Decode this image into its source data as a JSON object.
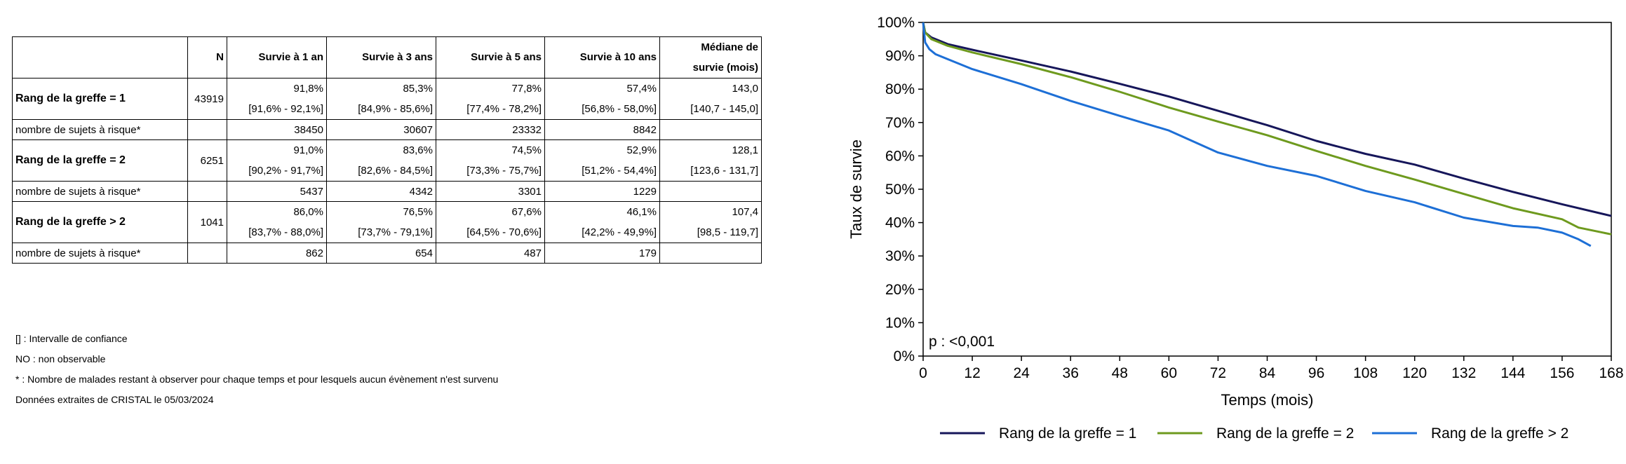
{
  "table": {
    "headers": {
      "group": "",
      "n": "N",
      "y1": "Survie à 1 an",
      "y3": "Survie à 3 ans",
      "y5": "Survie à 5 ans",
      "y10": "Survie à 10 ans",
      "median_line1": "Médiane de",
      "median_line2": "survie (mois)"
    },
    "groups": [
      {
        "label": "Rang de la greffe = 1",
        "n": "43919",
        "y1": {
          "value": "91,8%",
          "ci": "[91,6% - 92,1%]"
        },
        "y3": {
          "value": "85,3%",
          "ci": "[84,9% - 85,6%]"
        },
        "y5": {
          "value": "77,8%",
          "ci": "[77,4% - 78,2%]"
        },
        "y10": {
          "value": "57,4%",
          "ci": "[56,8% - 58,0%]"
        },
        "median": {
          "value": "143,0",
          "ci": "[140,7 - 145,0]"
        },
        "risk_label": "nombre de sujets à risque*",
        "risk": {
          "y1": "38450",
          "y3": "30607",
          "y5": "23332",
          "y10": "8842"
        }
      },
      {
        "label": "Rang de la greffe = 2",
        "n": "6251",
        "y1": {
          "value": "91,0%",
          "ci": "[90,2% - 91,7%]"
        },
        "y3": {
          "value": "83,6%",
          "ci": "[82,6% - 84,5%]"
        },
        "y5": {
          "value": "74,5%",
          "ci": "[73,3% - 75,7%]"
        },
        "y10": {
          "value": "52,9%",
          "ci": "[51,2% - 54,4%]"
        },
        "median": {
          "value": "128,1",
          "ci": "[123,6 - 131,7]"
        },
        "risk_label": "nombre de sujets à risque*",
        "risk": {
          "y1": "5437",
          "y3": "4342",
          "y5": "3301",
          "y10": "1229"
        }
      },
      {
        "label": "Rang de la greffe > 2",
        "n": "1041",
        "y1": {
          "value": "86,0%",
          "ci": "[83,7% - 88,0%]"
        },
        "y3": {
          "value": "76,5%",
          "ci": "[73,7% - 79,1%]"
        },
        "y5": {
          "value": "67,6%",
          "ci": "[64,5% - 70,6%]"
        },
        "y10": {
          "value": "46,1%",
          "ci": "[42,2% - 49,9%]"
        },
        "median": {
          "value": "107,4",
          "ci": "[98,5 - 119,7]"
        },
        "risk_label": "nombre de sujets à risque*",
        "risk": {
          "y1": "862",
          "y3": "654",
          "y5": "487",
          "y10": "179"
        }
      }
    ]
  },
  "footnotes": [
    "[] : Intervalle de confiance",
    "NO : non observable",
    "* : Nombre de malades restant à observer pour chaque temps et pour lesquels aucun évènement n'est survenu",
    "Données extraites de CRISTAL le 05/03/2024"
  ],
  "chart_data": {
    "type": "line",
    "title": "",
    "xlabel": "Temps (mois)",
    "ylabel": "Taux de survie",
    "xlim": [
      0,
      168
    ],
    "ylim": [
      0,
      100
    ],
    "x_ticks": [
      0,
      12,
      24,
      36,
      48,
      60,
      72,
      84,
      96,
      108,
      120,
      132,
      144,
      156,
      168
    ],
    "y_ticks": [
      0,
      10,
      20,
      30,
      40,
      50,
      60,
      70,
      80,
      90,
      100
    ],
    "y_tick_labels": [
      "0%",
      "10%",
      "20%",
      "30%",
      "40%",
      "50%",
      "60%",
      "70%",
      "80%",
      "90%",
      "100%"
    ],
    "annotation": "p : <0,001",
    "grid": false,
    "legend_position": "bottom",
    "series": [
      {
        "name": "Rang de la greffe = 1",
        "color": "#16165a",
        "x": [
          0,
          0.5,
          2,
          6,
          12,
          24,
          36,
          48,
          60,
          72,
          84,
          96,
          108,
          120,
          132,
          144,
          156,
          168
        ],
        "y": [
          100,
          97,
          95.5,
          93.5,
          91.8,
          88.6,
          85.3,
          81.6,
          77.8,
          73.5,
          69.2,
          64.5,
          60.6,
          57.4,
          53.2,
          49.2,
          45.5,
          42
        ]
      },
      {
        "name": "Rang de la greffe = 2",
        "color": "#6e9a1e",
        "x": [
          0,
          0.5,
          2,
          6,
          12,
          24,
          36,
          48,
          60,
          72,
          84,
          96,
          108,
          120,
          132,
          144,
          156,
          160,
          168
        ],
        "y": [
          100,
          97,
          95,
          93,
          91.0,
          87.5,
          83.6,
          79.2,
          74.5,
          70.3,
          66.2,
          61.5,
          57.0,
          52.9,
          48.6,
          44.3,
          41.0,
          38.5,
          36.5
        ]
      },
      {
        "name": "Rang de la greffe > 2",
        "color": "#1d6fd6",
        "x": [
          0,
          0.5,
          1.5,
          3,
          6,
          12,
          24,
          36,
          48,
          60,
          72,
          84,
          96,
          108,
          120,
          132,
          144,
          150,
          156,
          160,
          163
        ],
        "y": [
          100,
          94,
          92,
          90.5,
          89,
          86.0,
          81.5,
          76.5,
          72.0,
          67.6,
          61.0,
          57.0,
          54.0,
          49.5,
          46.1,
          41.5,
          39.0,
          38.5,
          37.0,
          35.0,
          33.0
        ]
      }
    ]
  }
}
